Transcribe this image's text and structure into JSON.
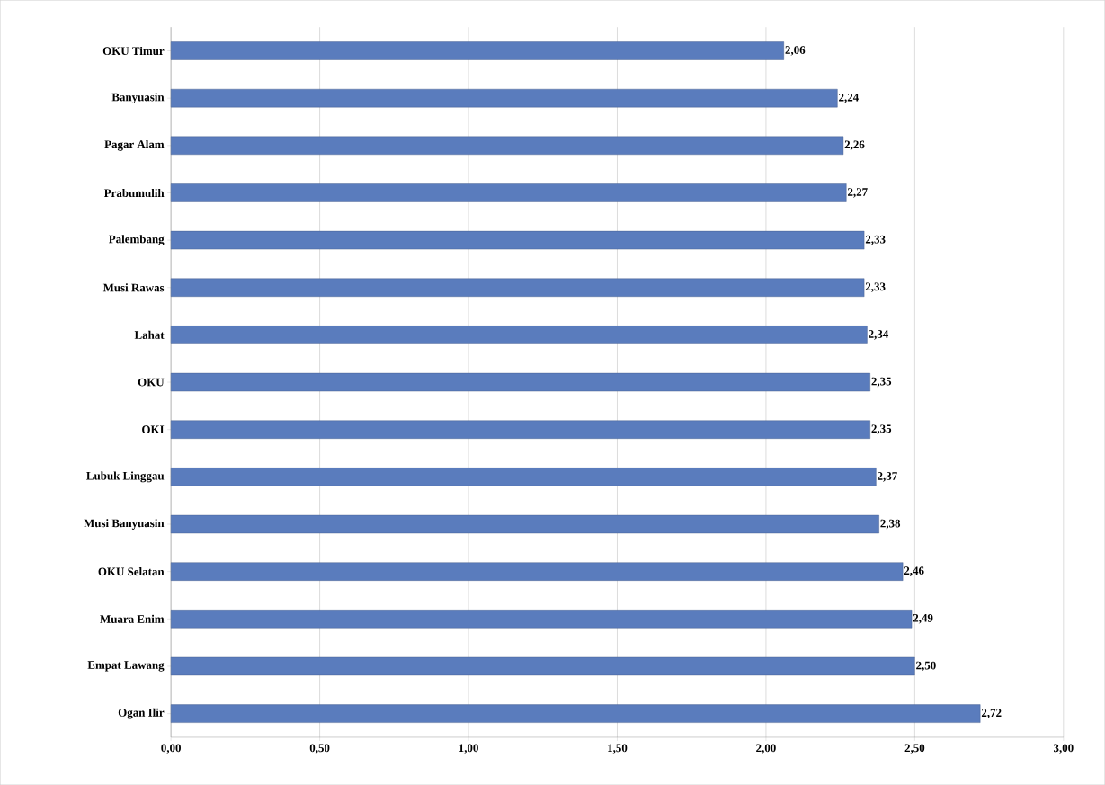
{
  "chart_data": {
    "type": "bar",
    "orientation": "horizontal",
    "categories": [
      "OKU Timur",
      "Banyuasin",
      "Pagar Alam",
      "Prabumulih",
      "Palembang",
      "Musi Rawas",
      "Lahat",
      "OKU",
      "OKI",
      "Lubuk Linggau",
      "Musi Banyuasin",
      "OKU Selatan",
      "Muara Enim",
      "Empat Lawang",
      "Ogan Ilir"
    ],
    "values": [
      2.06,
      2.24,
      2.26,
      2.27,
      2.33,
      2.33,
      2.34,
      2.35,
      2.35,
      2.37,
      2.38,
      2.46,
      2.49,
      2.5,
      2.72
    ],
    "value_labels": [
      "2,06",
      "2,24",
      "2,26",
      "2,27",
      "2,33",
      "2,33",
      "2,34",
      "2,35",
      "2,35",
      "2,37",
      "2,38",
      "2,46",
      "2,49",
      "2,50",
      "2,72"
    ],
    "color": "#5a7cbd",
    "xlim": [
      0,
      3
    ],
    "xticks": [
      {
        "value": 0,
        "label": "0,00"
      },
      {
        "value": 0.5,
        "label": "0,50"
      },
      {
        "value": 1,
        "label": "1,00"
      },
      {
        "value": 1.5,
        "label": "1,50"
      },
      {
        "value": 2,
        "label": "2,00"
      },
      {
        "value": 2.5,
        "label": "2,50"
      },
      {
        "value": 3,
        "label": "3,00"
      }
    ],
    "grid": "x"
  }
}
